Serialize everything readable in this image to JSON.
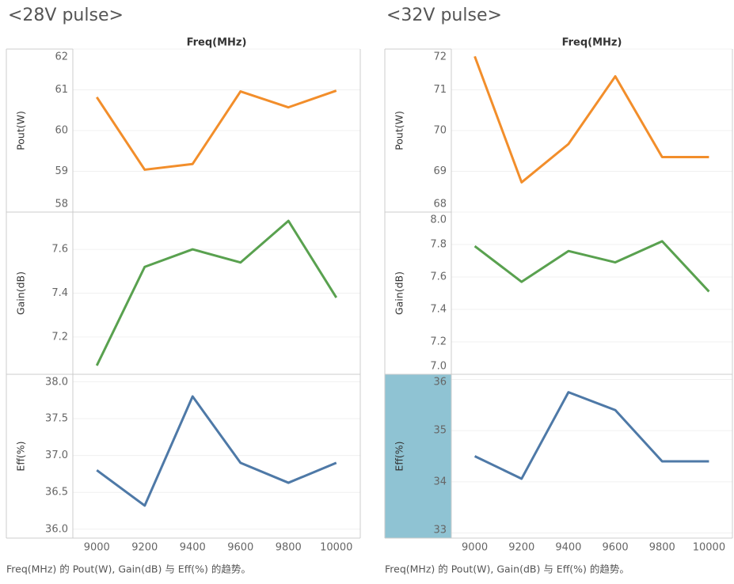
{
  "chart_data": [
    {
      "type": "line",
      "title": "<28V pulse>",
      "x_label": "Freq(MHz)",
      "caption": "Freq(MHz) 的 Pout(W), Gain(dB) 与 Eff(%) 的趋势。",
      "x": [
        9000,
        9200,
        9400,
        9600,
        9800,
        10000
      ],
      "xlim": [
        8900,
        10100
      ],
      "xticks": [
        9000,
        9200,
        9400,
        9600,
        9800,
        10000
      ],
      "series": [
        {
          "name": "Pout(W)",
          "color": "#f28e2b",
          "values": [
            60.82,
            59.04,
            59.18,
            60.96,
            60.57,
            60.98
          ],
          "ylim": [
            58,
            62
          ],
          "yticks": [
            58,
            59,
            60,
            61,
            62
          ]
        },
        {
          "name": "Gain(dB)",
          "color": "#59a14f",
          "values": [
            7.07,
            7.52,
            7.6,
            7.54,
            7.73,
            7.38
          ],
          "ylim": [
            7.03,
            7.77
          ],
          "yticks": [
            {
              "value": 7.2,
              "label": "7.2"
            },
            {
              "value": 7.4,
              "label": "7.4"
            },
            {
              "value": 7.6,
              "label": "7.6"
            }
          ]
        },
        {
          "name": "Eff(%)",
          "color": "#4e79a7",
          "values": [
            36.8,
            36.32,
            37.8,
            36.9,
            36.63,
            36.9
          ],
          "ylim": [
            35.88,
            38.1
          ],
          "yticks": [
            {
              "value": 36,
              "label": "36.0"
            },
            36.5,
            {
              "value": 37,
              "label": "37.0"
            },
            37.5,
            {
              "value": 38,
              "label": "38.0"
            }
          ]
        }
      ]
    },
    {
      "type": "line",
      "title": "<32V pulse>",
      "x_label": "Freq(MHz)",
      "caption": "Freq(MHz) 的 Pout(W), Gain(dB) 与 Eff(%) 的趋势。",
      "x": [
        9000,
        9200,
        9400,
        9600,
        9800,
        10000
      ],
      "xlim": [
        8900,
        10100
      ],
      "xticks": [
        9000,
        9200,
        9400,
        9600,
        9800,
        10000
      ],
      "series": [
        {
          "name": "Pout(W)",
          "color": "#f28e2b",
          "values": [
            71.82,
            68.73,
            69.67,
            71.33,
            69.35,
            69.35
          ],
          "ylim": [
            68,
            72
          ],
          "yticks": [
            68,
            69,
            70,
            71,
            72
          ]
        },
        {
          "name": "Gain(dB)",
          "color": "#59a14f",
          "values": [
            7.79,
            7.57,
            7.76,
            7.69,
            7.82,
            7.51
          ],
          "ylim": [
            7.0,
            8.0
          ],
          "yticks": [
            {
              "value": 7,
              "label": "7.0"
            },
            7.2,
            7.4,
            7.6,
            7.8,
            {
              "value": 8,
              "label": "8.0"
            }
          ]
        },
        {
          "name": "Eff(%)",
          "color": "#4e79a7",
          "values": [
            34.5,
            34.06,
            35.75,
            35.4,
            34.4,
            34.4
          ],
          "ylim": [
            32.9,
            36.1
          ],
          "yticks": [
            33,
            34,
            35,
            36
          ]
        }
      ]
    }
  ]
}
